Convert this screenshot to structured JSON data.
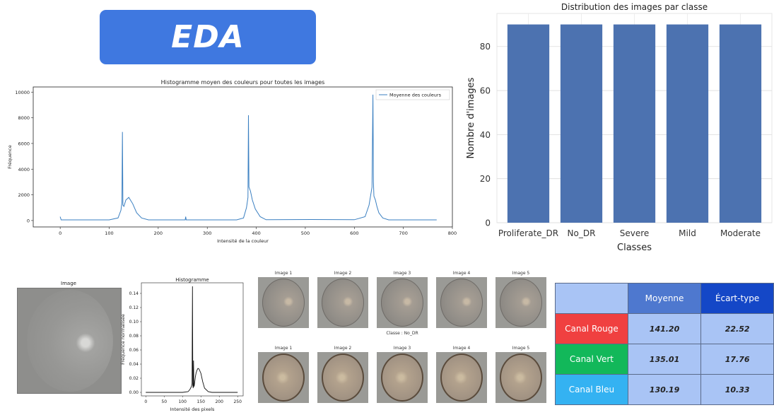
{
  "banner": {
    "title": "EDA"
  },
  "hist_avg": {
    "title": "Histogramme moyen des couleurs pour toutes les images",
    "xlabel": "Intensité de la couleur",
    "ylabel": "Fréquence",
    "legend": "Moyenne des couleurs",
    "color": "#3a7fc1",
    "x_ticks": [
      "0",
      "100",
      "200",
      "300",
      "400",
      "500",
      "600",
      "700",
      "800"
    ],
    "y_ticks": [
      "0",
      "2000",
      "4000",
      "6000",
      "8000",
      "10000"
    ]
  },
  "class_chart": {
    "title": "Distribution des images par classe",
    "xlabel": "Classes",
    "ylabel": "Nombre d'images",
    "y_ticks": [
      "0",
      "20",
      "40",
      "60",
      "80"
    ],
    "color": "#4c72b0"
  },
  "single_image": {
    "image_title": "Image",
    "hist_title": "Histogramme",
    "xlabel": "Intensité des pixels",
    "ylabel": "Fréquence normalisée",
    "x_ticks": [
      "0",
      "50",
      "100",
      "150",
      "200",
      "250"
    ],
    "y_ticks": [
      "0.00",
      "0.02",
      "0.04",
      "0.06",
      "0.08",
      "0.10",
      "0.12",
      "0.14"
    ]
  },
  "samples": {
    "row1": [
      "Image 1",
      "Image 2",
      "Image 3",
      "Image 4",
      "Image 5"
    ],
    "class_label": "Classe : No_DR",
    "row2": [
      "Image 1",
      "Image 2",
      "Image 3",
      "Image 4",
      "Image 5"
    ]
  },
  "stats_table": {
    "headers": [
      "",
      "Moyenne",
      "Écart-type"
    ],
    "rows": [
      {
        "label": "Canal Rouge",
        "mean": "141.20",
        "std": "22.52",
        "color": "#f04040"
      },
      {
        "label": "Canal Vert",
        "mean": "135.01",
        "std": "17.76",
        "color": "#12b85a"
      },
      {
        "label": "Canal Bleu",
        "mean": "130.19",
        "std": "10.33",
        "color": "#34b2f2"
      }
    ],
    "header_colors": [
      "#a9c4f5",
      "#4e78cf",
      "#1447c7"
    ]
  },
  "chart_data": [
    {
      "type": "line",
      "title": "Histogramme moyen des couleurs pour toutes les images",
      "xlabel": "Intensité de la couleur",
      "ylabel": "Fréquence",
      "xlim": [
        0,
        800
      ],
      "ylim": [
        0,
        10000
      ],
      "series": [
        {
          "name": "Moyenne des couleurs",
          "x": [
            0,
            2,
            100,
            118,
            124,
            126,
            127,
            128,
            130,
            134,
            140,
            148,
            156,
            166,
            180,
            255,
            256,
            257,
            360,
            374,
            380,
            383,
            384,
            385,
            388,
            392,
            398,
            408,
            420,
            512,
            600,
            622,
            630,
            636,
            638,
            639,
            640,
            643,
            646,
            650,
            658,
            670,
            768
          ],
          "y": [
            300,
            50,
            50,
            200,
            800,
            1400,
            6900,
            1200,
            1100,
            1600,
            1800,
            1300,
            600,
            200,
            50,
            50,
            300,
            50,
            50,
            200,
            1000,
            1800,
            8200,
            2600,
            2300,
            1600,
            900,
            300,
            60,
            80,
            60,
            300,
            1200,
            2600,
            9800,
            3000,
            1900,
            1600,
            1100,
            600,
            200,
            50,
            50
          ]
        }
      ],
      "legend": "top-right",
      "grid": false
    },
    {
      "type": "bar",
      "title": "Distribution des images par classe",
      "xlabel": "Classes",
      "ylabel": "Nombre d'images",
      "categories": [
        "Proliferate_DR",
        "No_DR",
        "Severe",
        "Mild",
        "Moderate"
      ],
      "values": [
        90,
        90,
        90,
        90,
        90
      ],
      "ylim": [
        0,
        95
      ],
      "grid": true
    },
    {
      "type": "line",
      "title": "Histogramme",
      "xlabel": "Intensité des pixels",
      "ylabel": "Fréquence normalisée",
      "xlim": [
        -12,
        265
      ],
      "ylim": [
        -0.005,
        0.155
      ],
      "series": [
        {
          "name": "",
          "x": [
            0,
            100,
            115,
            120,
            124,
            126,
            127,
            128,
            129,
            130,
            131,
            132,
            133,
            135,
            137,
            140,
            142,
            145,
            150,
            155,
            160,
            170,
            180,
            250
          ],
          "y": [
            0,
            0,
            0.001,
            0.004,
            0.008,
            0.012,
            0.15,
            0.01,
            0.006,
            0.045,
            0.008,
            0.01,
            0.014,
            0.022,
            0.028,
            0.032,
            0.034,
            0.033,
            0.027,
            0.015,
            0.006,
            0.001,
            0,
            0
          ]
        }
      ],
      "grid": false
    }
  ]
}
